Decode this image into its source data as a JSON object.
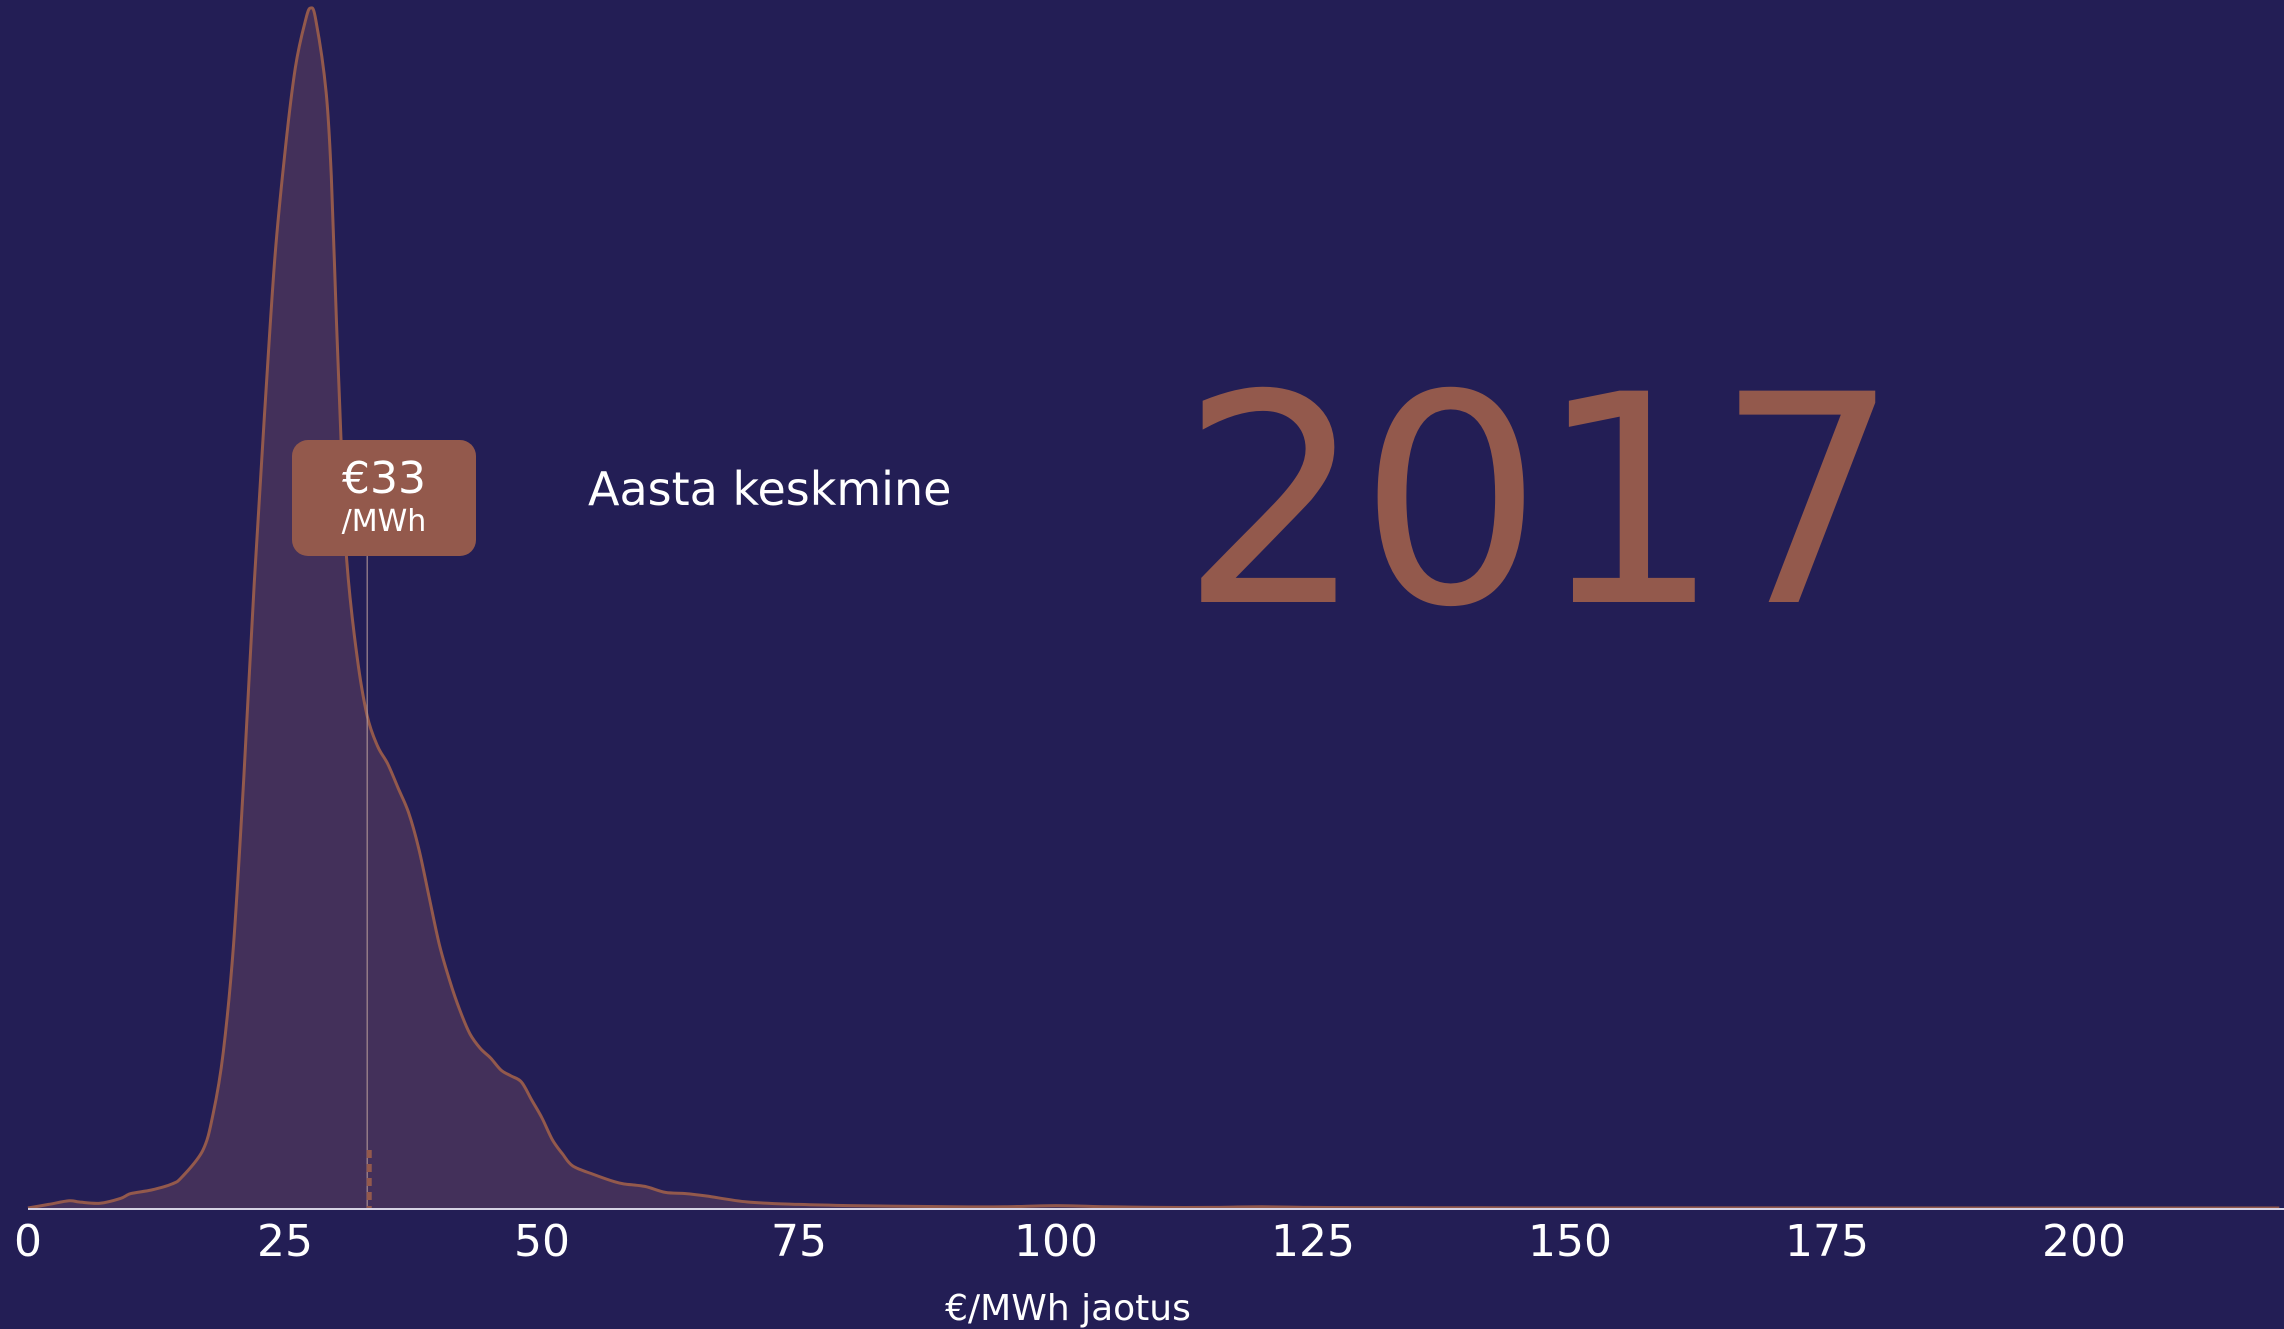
{
  "chart_data": {
    "type": "area",
    "title": "",
    "xlabel": "€/MWh jaotus",
    "ylabel": "",
    "xlim": [
      0,
      219
    ],
    "ylim": [
      0,
      1
    ],
    "grid": false,
    "x_ticks": [
      "0",
      "25",
      "50",
      "75",
      "100",
      "125",
      "150",
      "175",
      "200"
    ],
    "series": [
      {
        "x": [
          0,
          2,
          4,
          5,
          7,
          9,
          10,
          12,
          14,
          15,
          17,
          18,
          19,
          20,
          21,
          22,
          23,
          24,
          25,
          26,
          27,
          27.5,
          28,
          29,
          29.5,
          30,
          30.5,
          31,
          32,
          33,
          34,
          35,
          36,
          37,
          38,
          39,
          40,
          41,
          42,
          43,
          44,
          45,
          46,
          47,
          48,
          49,
          50,
          51,
          52,
          53,
          55,
          57,
          58,
          60,
          62,
          64,
          66,
          70,
          75,
          80,
          90,
          95,
          100,
          105,
          110,
          115,
          120,
          125,
          130,
          140,
          150,
          219
        ],
        "y": [
          0,
          0.003,
          0.006,
          0.005,
          0.004,
          0.008,
          0.012,
          0.015,
          0.02,
          0.026,
          0.048,
          0.078,
          0.13,
          0.22,
          0.36,
          0.52,
          0.66,
          0.79,
          0.88,
          0.95,
          0.99,
          1.0,
          0.99,
          0.93,
          0.86,
          0.74,
          0.63,
          0.54,
          0.46,
          0.41,
          0.385,
          0.37,
          0.35,
          0.33,
          0.3,
          0.26,
          0.22,
          0.19,
          0.165,
          0.145,
          0.133,
          0.125,
          0.115,
          0.11,
          0.105,
          0.09,
          0.075,
          0.057,
          0.045,
          0.035,
          0.028,
          0.022,
          0.02,
          0.018,
          0.013,
          0.012,
          0.01,
          0.005,
          0.003,
          0.002,
          0.001,
          0.001,
          0.002,
          0.001,
          0.0005,
          0.0005,
          0.001,
          0.0005,
          0.0003,
          0.0002,
          0.0001,
          0
        ]
      }
    ],
    "mean_marker": {
      "x": 33,
      "value_label": "€33",
      "unit_label": "/MWh",
      "annotation": "Aasta keskmine"
    },
    "year_label": "2017",
    "colors": {
      "background": "#231e55",
      "accent": "#93594c",
      "fill": "#43305a",
      "axis": "#d6d3e4",
      "text": "#ffffff"
    }
  }
}
